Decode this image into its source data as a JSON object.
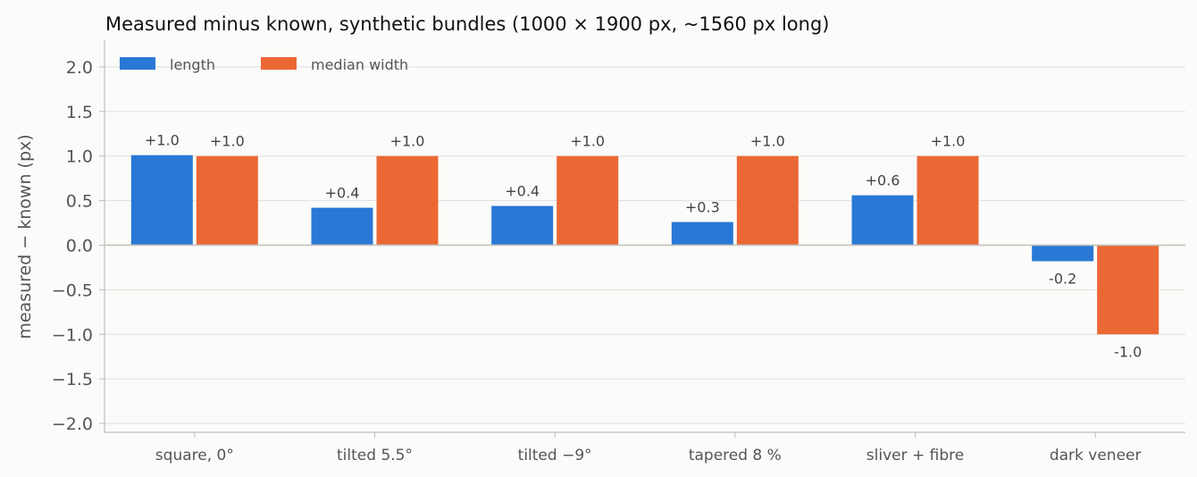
{
  "chart_data": {
    "type": "bar",
    "title": "Measured minus known, synthetic bundles (1000 × 1900 px, ~1560 px long)",
    "xlabel": "",
    "ylabel": "measured − known (px)",
    "ylim": [
      -2.1,
      2.3
    ],
    "yticks": [
      2.0,
      1.5,
      1.0,
      0.5,
      0.0,
      -0.5,
      -1.0,
      -1.5,
      -2.0
    ],
    "ytick_labels": [
      "2.0",
      "1.5",
      "1.0",
      "0.5",
      "0.0",
      "−0.5",
      "−1.0",
      "−1.5",
      "−2.0"
    ],
    "grid": "horizontal",
    "legend_position": "top-left",
    "categories": [
      "square, 0°",
      "tilted 5.5°",
      "tilted −9°",
      "tapered 8 %",
      "sliver + fibre",
      "dark veneer"
    ],
    "series": [
      {
        "name": "length",
        "color": "#2a78d6",
        "values": [
          1.01,
          0.42,
          0.44,
          0.26,
          0.56,
          -0.18
        ],
        "labels": [
          "+1.0",
          "+0.4",
          "+0.4",
          "+0.3",
          "+0.6",
          "-0.2"
        ]
      },
      {
        "name": "median width",
        "color": "#eb6834",
        "values": [
          1.0,
          1.0,
          1.0,
          1.0,
          1.0,
          -1.0
        ],
        "labels": [
          "+1.0",
          "+1.0",
          "+1.0",
          "+1.0",
          "+1.0",
          "-1.0"
        ]
      }
    ]
  }
}
